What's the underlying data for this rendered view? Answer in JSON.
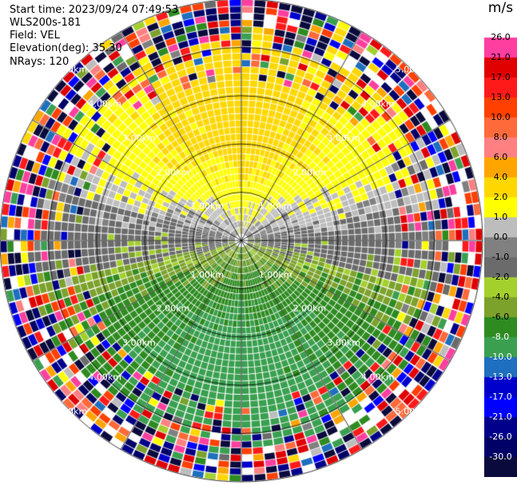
{
  "chart_data": {
    "type": "heatmap",
    "subtype": "polar-ppi-radial-velocity",
    "info": {
      "start_time": "Start time: 2023/09/24 07:49:53",
      "instrument": "WLS200s-181",
      "field": "Field: VEL",
      "elevation": "Elevation(deg): 35.30",
      "nrays": "NRays: 120"
    },
    "n_rays": 120,
    "range_rings_km": [
      1.0,
      2.0,
      3.0,
      4.0,
      5.0
    ],
    "ring_labels": [
      "1.00km",
      "2.00km",
      "3.00km",
      "4.00km",
      "5.00km"
    ],
    "radial_lines": 12,
    "colorbar": {
      "unit": "m/s",
      "min": -30.0,
      "max": 30.0,
      "tick_labels": [
        "26.0",
        "21.0",
        "17.0",
        "13.0",
        "10.0",
        "8.0",
        "6.0",
        "4.0",
        "2.0",
        "1.0",
        "0.0",
        "-1.0",
        "-2.0",
        "-4.0",
        "-6.0",
        "-8.0",
        "-10.0",
        "-13.0",
        "-17.0",
        "-21.0",
        "-26.0",
        "-30.0"
      ],
      "colors": [
        "#ffffff",
        "#ff3fa0",
        "#e00000",
        "#ff1a1a",
        "#ff4000",
        "#ff6a3a",
        "#ff8080",
        "#ffa500",
        "#ffd700",
        "#ffff00",
        "#bdbdbd",
        "#808080",
        "#6b6b6b",
        "#a4d02e",
        "#7ca22c",
        "#2e8b20",
        "#3aa050",
        "#1e6fbf",
        "#0000cd",
        "#0000ff",
        "#00008b",
        "#000066",
        "#0a0a3c"
      ]
    },
    "field_summary": {
      "approaching_sector": "south (green, -1 to -6 m/s)",
      "receding_sector": "north (yellow/orange, +1 to +6 m/s)",
      "noise_beyond_km": 4.0
    }
  }
}
